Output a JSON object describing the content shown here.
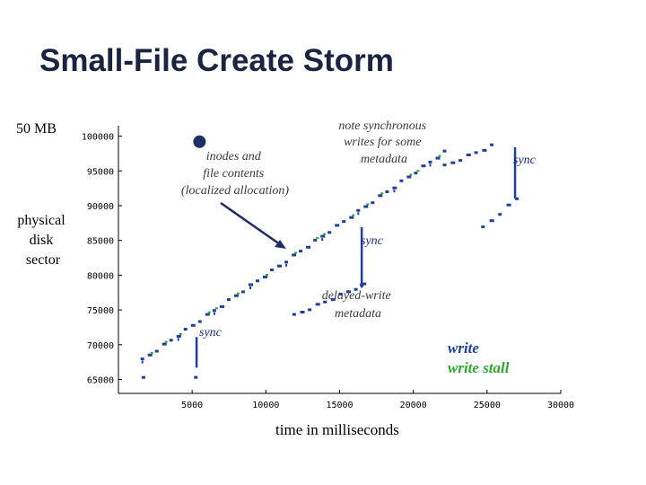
{
  "slide": {
    "title": "Small-File Create Storm"
  },
  "chart_data": {
    "type": "scatter",
    "xlabel": "time in milliseconds",
    "ylabel": "physical disk sector",
    "x_ticks": [
      "5000",
      "10000",
      "15000",
      "20000",
      "25000",
      "30000"
    ],
    "y_ticks": [
      "65000",
      "70000",
      "75000",
      "80000",
      "85000",
      "90000",
      "95000",
      "100000"
    ],
    "xlim": [
      0,
      30000
    ],
    "ylim": [
      63000,
      101500
    ],
    "grid": false,
    "legend_position": "bottom-right",
    "scale_marker": {
      "label": "50 MB",
      "marker_x": 5500,
      "marker_y": 99200
    },
    "legend": [
      {
        "label": "write",
        "color": "#1f3f9e"
      },
      {
        "label": "write stall",
        "color": "#2fa82f"
      }
    ],
    "segments": [
      {
        "name": "inodes-and-contents",
        "x_start": 1500,
        "x_end": 22000,
        "y_start": 67800,
        "y_end": 97700
      },
      {
        "name": "tail",
        "x_start": 22000,
        "x_end": 25200,
        "y_start": 95700,
        "y_end": 98600
      },
      {
        "name": "delayed-write-metadata",
        "x_start": 11800,
        "x_end": 16500,
        "y_start": 74200,
        "y_end": 78600
      },
      {
        "name": "sync-meta-upper",
        "x_start": 24600,
        "x_end": 26900,
        "y_start": 86800,
        "y_end": 91000
      }
    ],
    "sync_lines": [
      {
        "x": 5300,
        "y_low": 66700,
        "y_high": 71100
      },
      {
        "x": 16500,
        "y_low": 78200,
        "y_high": 86900
      },
      {
        "x": 26900,
        "y_low": 91000,
        "y_high": 98400
      }
    ],
    "stragglers": [
      {
        "x": 1700,
        "y": 65300
      },
      {
        "x": 5250,
        "y": 65300
      },
      {
        "x": 16500,
        "y": 78600
      }
    ],
    "annotations": [
      {
        "id": "inodes",
        "lines": [
          "inodes and",
          "file contents",
          "(localized allocation)"
        ]
      },
      {
        "id": "note-sync",
        "lines": [
          "note synchronous",
          "writes for some",
          "metadata"
        ]
      },
      {
        "id": "sync-right",
        "text": "sync"
      },
      {
        "id": "sync-middle",
        "text": "sync"
      },
      {
        "id": "delayed-write",
        "lines": [
          "delayed-write",
          "metadata"
        ]
      },
      {
        "id": "sync-left",
        "text": "sync"
      }
    ],
    "colors": {
      "write": "#1f3f9e",
      "stall": "#2fa82f",
      "annotation_text": "#3a3a3a",
      "sync_label": "#1c2a80",
      "axis": "#000000",
      "arrow": "#1f2f66"
    }
  }
}
